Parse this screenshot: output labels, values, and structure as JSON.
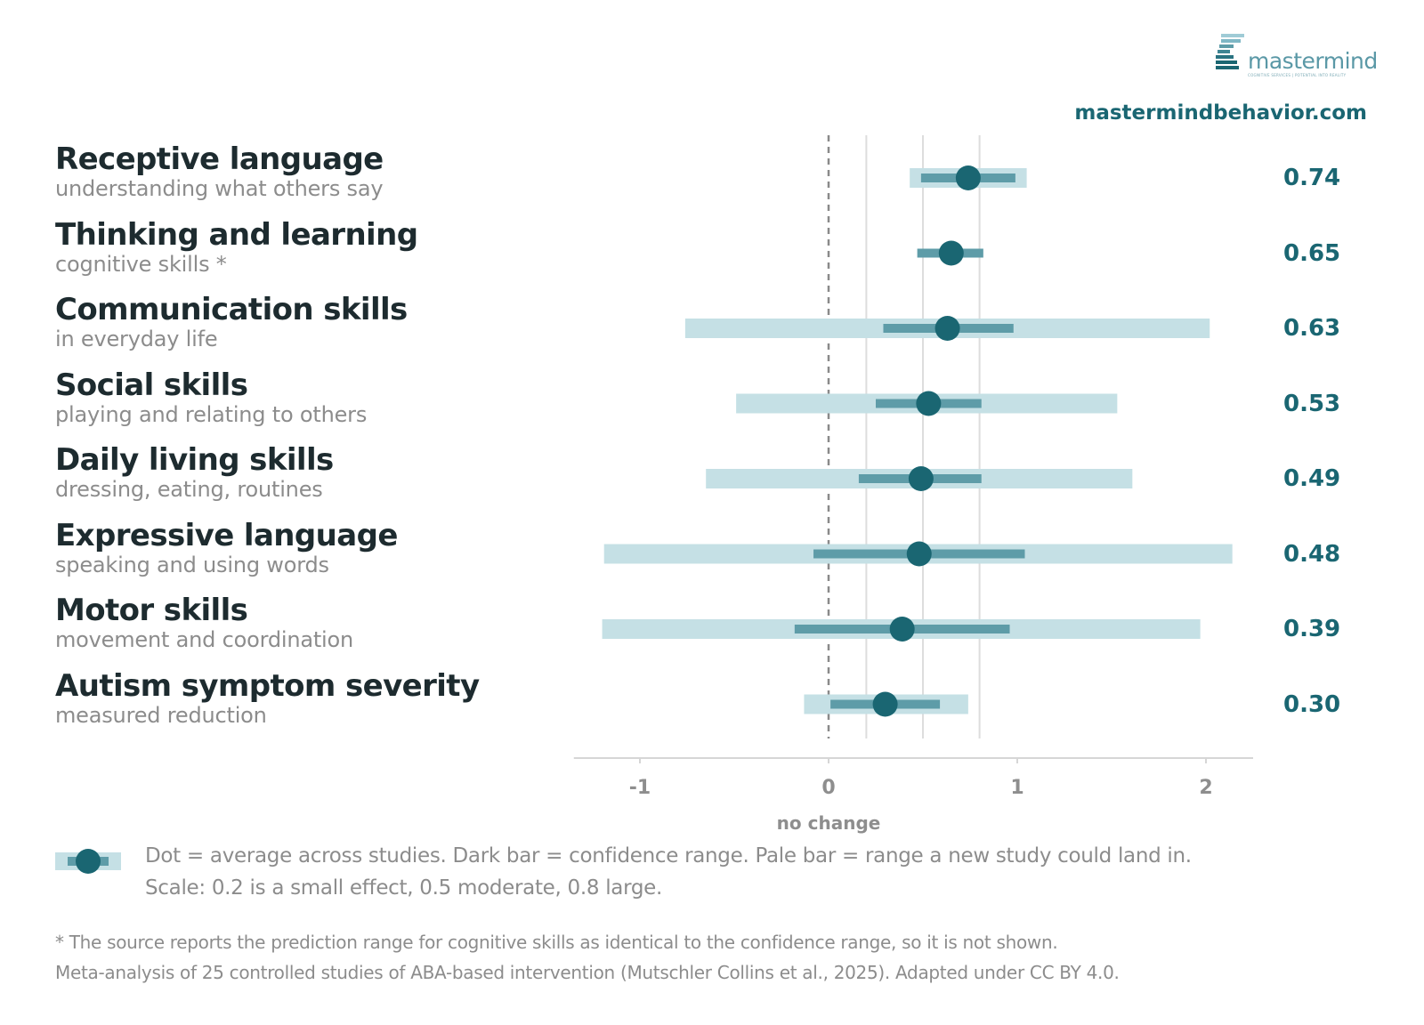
{
  "brand": {
    "logo_text": "mastermind",
    "logo_tagline": "COGNITIVE SERVICES | POTENTIAL INTO REALITY",
    "website": "mastermindbehavior.com",
    "colors": {
      "dark_teal": "#1a6672",
      "mid_teal": "#5e9ca8",
      "pale_teal": "#c5e0e5"
    }
  },
  "chart_data": {
    "type": "forest",
    "x_axis": {
      "ticks": [
        -1,
        0,
        1,
        2
      ],
      "tick_labels": [
        "-1",
        "0",
        "1",
        "2"
      ],
      "range": [
        -1.35,
        2.25
      ],
      "reference_line": 0,
      "reference_label": "no change",
      "gridlines": [
        0.2,
        0.5,
        0.8
      ]
    },
    "rows": [
      {
        "title": "Receptive language",
        "subtitle": "understanding what others say",
        "estimate": 0.74,
        "ci": [
          0.49,
          0.99
        ],
        "pi": [
          0.43,
          1.05
        ],
        "value_label": "0.74"
      },
      {
        "title": "Thinking and learning",
        "subtitle": "cognitive skills *",
        "estimate": 0.65,
        "ci": [
          0.47,
          0.82
        ],
        "pi": null,
        "value_label": "0.65"
      },
      {
        "title": "Communication skills",
        "subtitle": "in everyday life",
        "estimate": 0.63,
        "ci": [
          0.29,
          0.98
        ],
        "pi": [
          -0.76,
          2.02
        ],
        "value_label": "0.63"
      },
      {
        "title": "Social skills",
        "subtitle": "playing and relating to others",
        "estimate": 0.53,
        "ci": [
          0.25,
          0.81
        ],
        "pi": [
          -0.49,
          1.53
        ],
        "value_label": "0.53"
      },
      {
        "title": "Daily living skills",
        "subtitle": "dressing, eating, routines",
        "estimate": 0.49,
        "ci": [
          0.16,
          0.81
        ],
        "pi": [
          -0.65,
          1.61
        ],
        "value_label": "0.49"
      },
      {
        "title": "Expressive language",
        "subtitle": "speaking and using words",
        "estimate": 0.48,
        "ci": [
          -0.08,
          1.04
        ],
        "pi": [
          -1.19,
          2.14
        ],
        "value_label": "0.48"
      },
      {
        "title": "Motor skills",
        "subtitle": "movement and coordination",
        "estimate": 0.39,
        "ci": [
          -0.18,
          0.96
        ],
        "pi": [
          -1.2,
          1.97
        ],
        "value_label": "0.39"
      },
      {
        "title": "Autism symptom severity",
        "subtitle": "measured reduction",
        "estimate": 0.3,
        "ci": [
          0.01,
          0.59
        ],
        "pi": [
          -0.13,
          0.74
        ],
        "value_label": "0.30"
      }
    ]
  },
  "legend": {
    "line1": "Dot = average across studies.   Dark bar = confidence range.   Pale bar = range a new study could land in.",
    "line2": "Scale: 0.2 is a small effect, 0.5 moderate, 0.8 large."
  },
  "footnotes": {
    "line1": "* The source reports the prediction range for cognitive skills as identical to the confidence range, so it is not shown.",
    "line2": "Meta-analysis of 25 controlled studies of ABA-based intervention (Mutschler Collins et al., 2025). Adapted under CC BY 4.0."
  }
}
